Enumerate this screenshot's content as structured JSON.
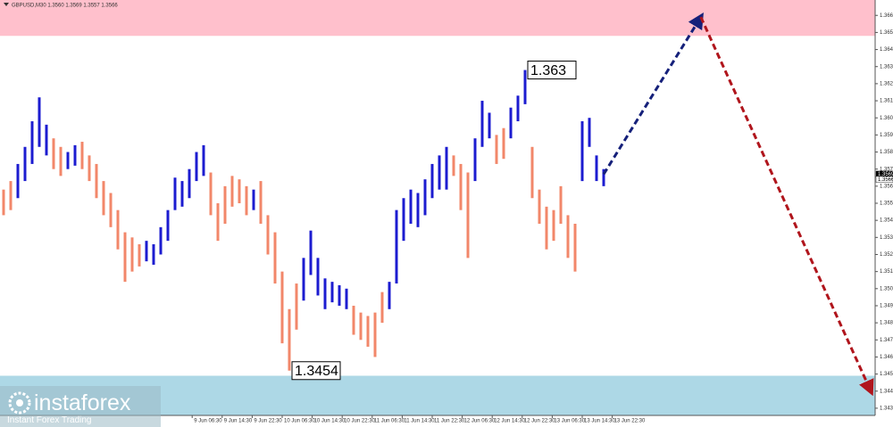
{
  "chart_data": {
    "type": "ohlc",
    "header": "GBPUSD,M30  1.3560 1.3569 1.3557 1.3566",
    "x": [
      0,
      1,
      2,
      3,
      4,
      5,
      6,
      7,
      8,
      9,
      10,
      11,
      12,
      13,
      14,
      15,
      16,
      17,
      18,
      19,
      20,
      21,
      22,
      23,
      24,
      25,
      26,
      27,
      28,
      29,
      30,
      31,
      32,
      33,
      34,
      35,
      36,
      37,
      38,
      39,
      40,
      41,
      42,
      43,
      44,
      45,
      46,
      47,
      48,
      49,
      50,
      51,
      52,
      53,
      54,
      55,
      56,
      57,
      58,
      59,
      60,
      61,
      62,
      63,
      64,
      65,
      66,
      67,
      68,
      69,
      70,
      71,
      72,
      73,
      74,
      75,
      76,
      77,
      78,
      79,
      80,
      81,
      82,
      83,
      84
    ],
    "low": [
      1.3545,
      1.3548,
      1.3555,
      1.3565,
      1.3575,
      1.3585,
      1.358,
      1.3572,
      1.3568,
      1.3572,
      1.3574,
      1.3572,
      1.3565,
      1.3555,
      1.3545,
      1.3538,
      1.3525,
      1.3506,
      1.3512,
      1.3515,
      1.3518,
      1.3516,
      1.3522,
      1.353,
      1.3548,
      1.355,
      1.3555,
      1.3565,
      1.3568,
      1.3545,
      1.353,
      1.354,
      1.355,
      1.3552,
      1.3545,
      1.3548,
      1.354,
      1.3522,
      1.3505,
      1.347,
      1.3454,
      1.3478,
      1.3495,
      1.351,
      1.3498,
      1.349,
      1.3494,
      1.3492,
      1.349,
      1.3475,
      1.3472,
      1.3468,
      1.3462,
      1.3482,
      1.349,
      1.3505,
      1.353,
      1.354,
      1.3538,
      1.3545,
      1.3555,
      1.356,
      1.356,
      1.3568,
      1.3548,
      1.352,
      1.3565,
      1.3585,
      1.359,
      1.3575,
      1.3578,
      1.359,
      1.36,
      1.361,
      1.3555,
      1.354,
      1.3525,
      1.353,
      1.354,
      1.352,
      1.3512,
      1.3565,
      1.3585,
      1.3565,
      1.3562
    ],
    "high": [
      1.356,
      1.3565,
      1.3575,
      1.3585,
      1.36,
      1.3614,
      1.3598,
      1.359,
      1.3585,
      1.3582,
      1.3586,
      1.3588,
      1.358,
      1.3575,
      1.3565,
      1.3558,
      1.3548,
      1.3535,
      1.3532,
      1.3528,
      1.353,
      1.3528,
      1.3538,
      1.3548,
      1.3567,
      1.3565,
      1.3572,
      1.3582,
      1.3586,
      1.357,
      1.3552,
      1.3562,
      1.3568,
      1.3566,
      1.3562,
      1.356,
      1.3565,
      1.3545,
      1.3535,
      1.3512,
      1.349,
      1.3505,
      1.352,
      1.3536,
      1.352,
      1.3508,
      1.3506,
      1.3504,
      1.3502,
      1.3492,
      1.3488,
      1.3486,
      1.3488,
      1.35,
      1.3506,
      1.3548,
      1.3555,
      1.356,
      1.3558,
      1.3566,
      1.3575,
      1.358,
      1.3585,
      1.358,
      1.3575,
      1.357,
      1.359,
      1.3612,
      1.3605,
      1.3592,
      1.3596,
      1.3608,
      1.3615,
      1.363,
      1.3585,
      1.356,
      1.355,
      1.3548,
      1.3562,
      1.3545,
      1.354,
      1.36,
      1.3602,
      1.358,
      1.3572
    ],
    "direction": [
      "down",
      "down",
      "up",
      "up",
      "up",
      "up",
      "up",
      "down",
      "down",
      "up",
      "up",
      "down",
      "down",
      "down",
      "down",
      "down",
      "down",
      "down",
      "down",
      "down",
      "up",
      "up",
      "up",
      "up",
      "up",
      "up",
      "up",
      "up",
      "up",
      "down",
      "down",
      "down",
      "down",
      "down",
      "down",
      "up",
      "down",
      "down",
      "down",
      "down",
      "down",
      "down",
      "up",
      "up",
      "up",
      "up",
      "up",
      "up",
      "up",
      "down",
      "down",
      "down",
      "down",
      "down",
      "up",
      "up",
      "up",
      "up",
      "up",
      "up",
      "up",
      "up",
      "up",
      "down",
      "down",
      "down",
      "up",
      "up",
      "up",
      "down",
      "down",
      "up",
      "up",
      "up",
      "down",
      "down",
      "down",
      "down",
      "down",
      "down",
      "down",
      "up",
      "up",
      "up",
      "up"
    ],
    "up_color": "#1c1cd0",
    "down_color": "#f2876a",
    "xlim": [
      -0.5,
      122
    ],
    "xticks": [
      {
        "value": 26.4,
        "label": "9 Jun 06:30"
      },
      {
        "value": 30.6,
        "label": "9 Jun 14:30"
      },
      {
        "value": 34.8,
        "label": "9 Jun 22:30"
      },
      {
        "value": 39,
        "label": "10 Jun 06:30"
      },
      {
        "value": 43.2,
        "label": "10 Jun 14:30"
      },
      {
        "value": 47.4,
        "label": "10 Jun 22:30"
      },
      {
        "value": 51.6,
        "label": "11 Jun 06:30"
      },
      {
        "value": 55.8,
        "label": "11 Jun 14:30"
      },
      {
        "value": 60,
        "label": "11 Jun 22:30"
      },
      {
        "value": 64.2,
        "label": "12 Jun 06:30"
      },
      {
        "value": 68.4,
        "label": "12 Jun 14:30"
      },
      {
        "value": 72.6,
        "label": "12 Jun 22:30"
      },
      {
        "value": 76.8,
        "label": "13 Jun 06:30"
      },
      {
        "value": 81,
        "label": "13 Jun 14:30"
      },
      {
        "value": 85.2,
        "label": "13 Jun 22:30"
      }
    ],
    "ylim": [
      1.3421,
      1.3671
    ],
    "yticks": [
      1.3662,
      1.3652,
      1.3642,
      1.3632,
      1.3622,
      1.3612,
      1.3602,
      1.3592,
      1.3582,
      1.3572,
      1.3562,
      1.3552,
      1.3542,
      1.3532,
      1.3522,
      1.3512,
      1.3502,
      1.3492,
      1.3482,
      1.3472,
      1.3462,
      1.3452,
      1.3442,
      1.3432
    ],
    "price_labels": [
      1.3569,
      1.3566
    ],
    "zones": [
      {
        "from": 1.365,
        "to": 1.3671,
        "color": "#ffc0cc"
      },
      {
        "from": 1.3428,
        "to": 1.3451,
        "color": "#add8e6"
      }
    ],
    "annotations": [
      {
        "value": 1.363,
        "x": 73
      },
      {
        "value": 1.3454,
        "x": 40
      }
    ],
    "forecast": [
      {
        "x": 84,
        "y": 1.3569,
        "color": "#15207a"
      },
      {
        "x": 97.6,
        "y": 1.3661,
        "color": "#b0151c"
      },
      {
        "x": 121.4,
        "y": 1.3442
      }
    ],
    "watermark": {
      "brand": "instaforex",
      "tagline": "Instant Forex Trading"
    }
  }
}
